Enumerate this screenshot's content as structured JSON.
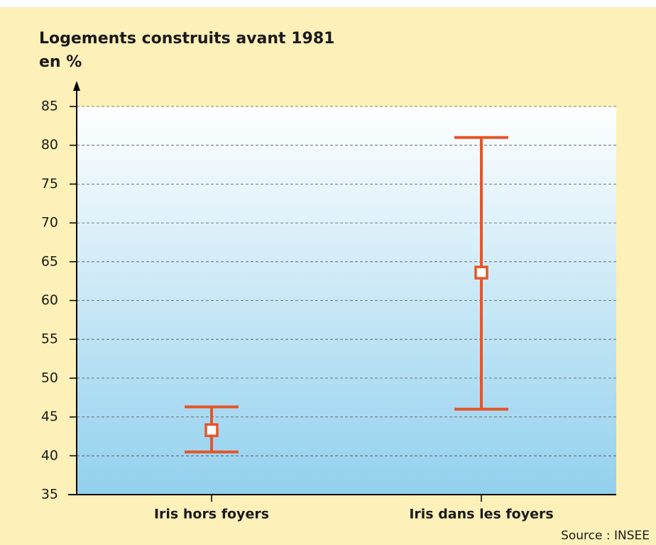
{
  "chart_data": {
    "type": "range",
    "title": "Logements construits avant 1981",
    "subtitle": "en %",
    "source": "Source : INSEE",
    "categories": [
      "Iris hors foyers",
      "Iris dans les foyers"
    ],
    "values": [
      43.3,
      63.6
    ],
    "lows": [
      40.5,
      46
    ],
    "highs": [
      46.3,
      81
    ],
    "color": "#e65528",
    "ylim": [
      35,
      85
    ],
    "yticks": [
      35,
      40,
      45,
      50,
      55,
      60,
      65,
      70,
      75,
      80,
      85
    ],
    "grid": true
  }
}
